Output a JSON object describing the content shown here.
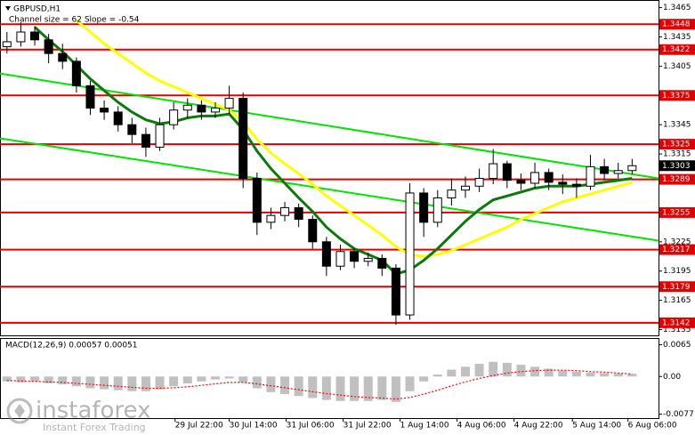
{
  "chart_data": {
    "type": "candlestick",
    "title": "GBPUSD,H1",
    "subtitle": "Channel size = 62 Slope = -0.54",
    "open": [
      1.3425,
      1.343,
      1.344,
      1.3432,
      1.3418,
      1.341,
      1.3385,
      1.3362,
      1.3358,
      1.3345,
      1.3335,
      1.3322,
      1.3345,
      1.336,
      1.3365,
      1.3358,
      1.3362,
      1.3372,
      1.329,
      1.3245,
      1.3252,
      1.326,
      1.3248,
      1.3225,
      1.32,
      1.3215,
      1.3205,
      1.3208,
      1.3198,
      1.315,
      1.3275,
      1.3245,
      1.327,
      1.3278,
      1.3282,
      1.329,
      1.3305,
      1.3288,
      1.3285,
      1.3296,
      1.3286,
      1.3284,
      1.3282,
      1.3302,
      1.3295,
      1.3298
    ],
    "high": [
      1.344,
      1.345,
      1.3446,
      1.3438,
      1.3428,
      1.3414,
      1.339,
      1.337,
      1.3364,
      1.3352,
      1.3342,
      1.3352,
      1.3368,
      1.3372,
      1.337,
      1.3368,
      1.3385,
      1.3378,
      1.3296,
      1.326,
      1.3266,
      1.3264,
      1.3252,
      1.323,
      1.3222,
      1.3218,
      1.3214,
      1.3212,
      1.3202,
      1.3285,
      1.328,
      1.3278,
      1.329,
      1.3292,
      1.33,
      1.332,
      1.3308,
      1.3295,
      1.3306,
      1.33,
      1.3294,
      1.329,
      1.3314,
      1.331,
      1.3306,
      1.331
    ],
    "low": [
      1.3418,
      1.3425,
      1.3426,
      1.3408,
      1.3402,
      1.3378,
      1.3355,
      1.335,
      1.3338,
      1.3326,
      1.3312,
      1.3318,
      1.334,
      1.3352,
      1.335,
      1.3352,
      1.3356,
      1.328,
      1.3232,
      1.3238,
      1.3246,
      1.324,
      1.3218,
      1.319,
      1.3196,
      1.3198,
      1.32,
      1.319,
      1.314,
      1.3145,
      1.323,
      1.324,
      1.3262,
      1.327,
      1.3276,
      1.3284,
      1.328,
      1.3278,
      1.328,
      1.3278,
      1.3274,
      1.327,
      1.3278,
      1.3288,
      1.329,
      1.3294
    ],
    "close": [
      1.343,
      1.344,
      1.3432,
      1.3418,
      1.341,
      1.3385,
      1.3362,
      1.3358,
      1.3345,
      1.3335,
      1.3322,
      1.3345,
      1.336,
      1.3365,
      1.3358,
      1.3362,
      1.3372,
      1.329,
      1.3245,
      1.3252,
      1.326,
      1.3248,
      1.3225,
      1.32,
      1.3215,
      1.3205,
      1.3208,
      1.3198,
      1.315,
      1.3275,
      1.3245,
      1.327,
      1.3278,
      1.3282,
      1.329,
      1.3305,
      1.3288,
      1.3285,
      1.3296,
      1.3286,
      1.3284,
      1.3282,
      1.3302,
      1.3295,
      1.3298,
      1.3303
    ],
    "candle_colors": {
      "up": "#ffffff",
      "down": "#000000",
      "edge": "#000000"
    },
    "ylim": [
      1.313,
      1.3471
    ],
    "yticks": [
      1.3465,
      1.3435,
      1.3405,
      1.3345,
      1.3315,
      1.3225,
      1.3195,
      1.3165,
      1.3135
    ],
    "xlim": [
      -0.5,
      46.9
    ],
    "xticks": [
      {
        "value": 12.1,
        "label": "29 Jul 22:00"
      },
      {
        "value": 16.0,
        "label": "30 Jul 14:00"
      },
      {
        "value": 20.1,
        "label": "31 Jul 06:00"
      },
      {
        "value": 24.2,
        "label": "31 Jul 22:00"
      },
      {
        "value": 28.3,
        "label": "1 Aug 14:00"
      },
      {
        "value": 32.4,
        "label": "4 Aug 06:00"
      },
      {
        "value": 36.5,
        "label": "4 Aug 22:00"
      },
      {
        "value": 40.7,
        "label": "5 Aug 14:00"
      },
      {
        "value": 44.7,
        "label": "6 Aug 06:00"
      }
    ],
    "levels": {
      "color": "#e00000",
      "values": [
        1.3448,
        1.3422,
        1.3375,
        1.3325,
        1.3289,
        1.3255,
        1.3217,
        1.3179,
        1.3142
      ]
    },
    "lines": [
      {
        "color": "#ffff00",
        "values": [
          null,
          null,
          null,
          null,
          null,
          1.3452,
          1.344,
          1.3428,
          1.3418,
          1.3408,
          1.3398,
          1.339,
          1.3384,
          1.3378,
          1.3372,
          1.3366,
          1.336,
          1.3348,
          1.333,
          1.3316,
          1.3305,
          1.3295,
          1.3284,
          1.3272,
          1.3262,
          1.3252,
          1.3242,
          1.3232,
          1.322,
          1.3212,
          1.321,
          1.3212,
          1.3216,
          1.3222,
          1.3228,
          1.3234,
          1.324,
          1.3248,
          1.3254,
          1.326,
          1.3266,
          1.327,
          1.3274,
          1.3278,
          1.3282,
          1.3286
        ]
      },
      {
        "color": "#0b7a0b",
        "values": [
          null,
          null,
          1.3445,
          1.3432,
          1.342,
          1.3406,
          1.3392,
          1.338,
          1.3368,
          1.3358,
          1.335,
          1.3346,
          1.3348,
          1.3352,
          1.3354,
          1.3354,
          1.3356,
          1.334,
          1.3318,
          1.33,
          1.3285,
          1.327,
          1.3256,
          1.324,
          1.3228,
          1.3218,
          1.3212,
          1.3206,
          1.3192,
          1.3196,
          1.3206,
          1.3218,
          1.3232,
          1.3246,
          1.3258,
          1.3268,
          1.3272,
          1.3276,
          1.328,
          1.3282,
          1.3282,
          1.3282,
          1.3284,
          1.3286,
          1.3288,
          1.329
        ]
      }
    ],
    "channel": {
      "color": "#00e400",
      "lines": [
        {
          "x": [
            -0.5,
            46.9
          ],
          "values": [
            1.33975,
            1.329
          ]
        },
        {
          "x": [
            -0.5,
            46.9
          ],
          "values": [
            1.3331,
            1.32262
          ]
        }
      ]
    },
    "indicator": {
      "label": "MACD(12,26,9) 0.00057 0.00051",
      "color": "#c0c0c0",
      "signal_color": "#ff0000",
      "ylim": [
        -0.0085,
        0.0075
      ],
      "yticks": [
        0.0065,
        {
          "value": 0,
          "label": "0.00"
        },
        -0.0077
      ],
      "histogram": [
        -0.001,
        -0.0012,
        -0.001,
        -0.0014,
        -0.0016,
        -0.002,
        -0.0024,
        -0.0026,
        -0.0028,
        -0.003,
        -0.003,
        -0.0026,
        -0.002,
        -0.0014,
        -0.001,
        -0.0006,
        -0.0004,
        -0.0012,
        -0.0024,
        -0.0032,
        -0.0036,
        -0.004,
        -0.0044,
        -0.0048,
        -0.005,
        -0.005,
        -0.005,
        -0.0048,
        -0.0052,
        -0.003,
        -0.001,
        0.0004,
        0.0014,
        0.002,
        0.0026,
        0.003,
        0.0028,
        0.0024,
        0.002,
        0.0016,
        0.0012,
        0.001,
        0.0008,
        0.0007,
        0.0006,
        0.00057
      ],
      "signal": [
        -0.0008,
        -0.0009,
        -0.001,
        -0.0011,
        -0.0012,
        -0.0014,
        -0.0016,
        -0.0018,
        -0.002,
        -0.0022,
        -0.0024,
        -0.0024,
        -0.0023,
        -0.0021,
        -0.0018,
        -0.0015,
        -0.0012,
        -0.0012,
        -0.0015,
        -0.0019,
        -0.0023,
        -0.0027,
        -0.0031,
        -0.0035,
        -0.0038,
        -0.0041,
        -0.0043,
        -0.0044,
        -0.0046,
        -0.0043,
        -0.0036,
        -0.0028,
        -0.0019,
        -0.0011,
        -0.0004,
        0.0002,
        0.0007,
        0.001,
        0.0012,
        0.0013,
        0.0013,
        0.0012,
        0.001,
        0.0009,
        0.0007,
        0.00051
      ]
    }
  },
  "branding": {
    "logo": "instaforex",
    "tagline": "Instant Forex Trading"
  }
}
